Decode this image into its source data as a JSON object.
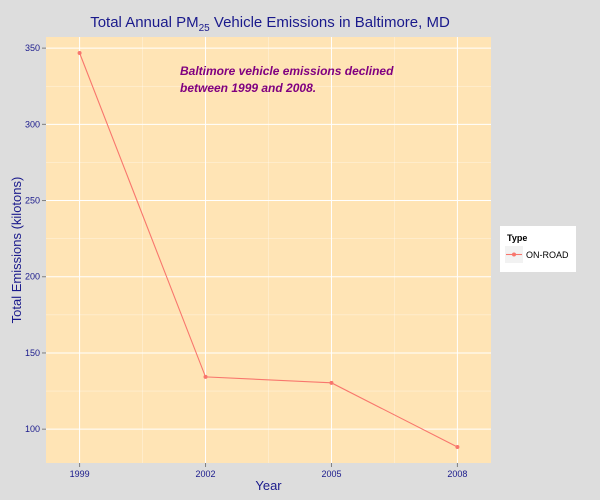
{
  "chart_data": {
    "type": "line",
    "title": {
      "prefix": "Total Annual PM",
      "subscript": "25",
      "suffix": " Vehicle Emissions in Baltimore, MD"
    },
    "xlabel": "Year",
    "ylabel": "Total Emissions (kilotons)",
    "x": [
      1999,
      2002,
      2005,
      2008
    ],
    "x_tick_labels": [
      "1999",
      "2002",
      "2005",
      "2008"
    ],
    "xlim": [
      1998.2,
      2008.8
    ],
    "y_ticks": [
      100,
      150,
      200,
      250,
      300,
      350
    ],
    "y_tick_labels": [
      "100",
      "150",
      "200",
      "250",
      "300",
      "350"
    ],
    "ylim": [
      77.8,
      357.3
    ],
    "series": [
      {
        "name": "ON-ROAD",
        "values": [
          346.8,
          134.3,
          130.4,
          88.3
        ],
        "color": "#f8766d"
      }
    ],
    "annotation": {
      "lines": [
        "Baltimore vehicle emissions declined",
        "between 1999 and 2008."
      ]
    },
    "legend": {
      "title": "Type",
      "position": "right"
    },
    "grid": true,
    "colors": {
      "panel_background": "#ffe4b5",
      "page_background": "#dddddd",
      "grid": "#ffffff",
      "text": "#1a1a8c",
      "annotation": "#800080"
    }
  }
}
